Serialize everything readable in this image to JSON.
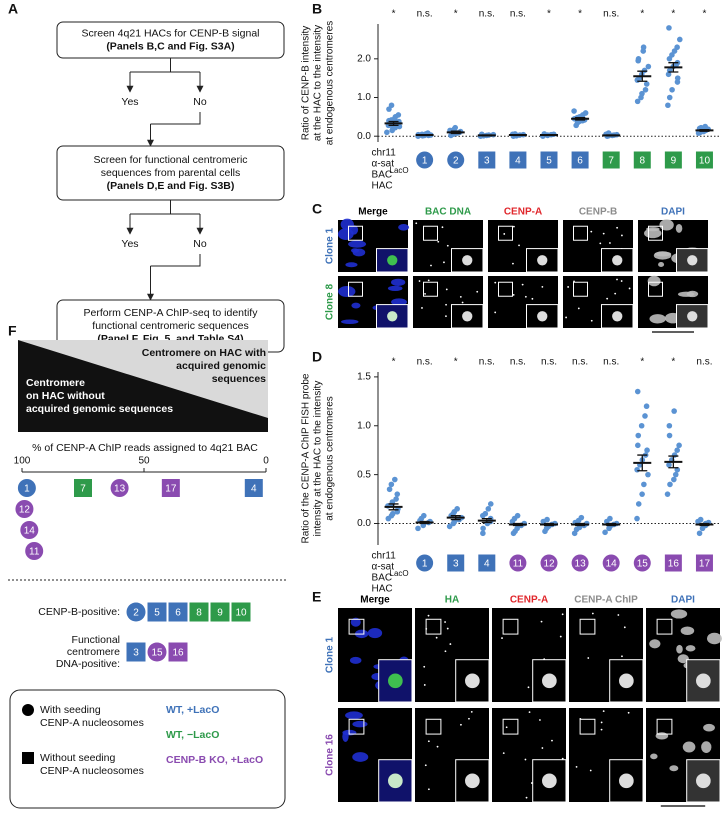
{
  "panel_a": {
    "label": "A",
    "boxes": [
      {
        "lines": [
          "Screen 4q21 HACs for CENP-B signal"
        ],
        "ref": "(Panels B,C and Fig. S3A)"
      },
      {
        "lines": [
          "Screen for functional centromeric",
          "sequences from parental cells"
        ],
        "ref": "(Panels D,E and Fig. S3B)"
      },
      {
        "lines": [
          "Perform CENP-A ChIP-seq to identify",
          "functional centromeric sequences"
        ],
        "ref": "(Panel F, Fig. 5, and Table S4)"
      }
    ],
    "branches": [
      {
        "yes": "Yes",
        "no": "No"
      },
      {
        "yes": "Yes",
        "no": "No"
      }
    ]
  },
  "panel_c": {
    "label": "C",
    "columns": [
      {
        "text": "Merge",
        "color": "#000000"
      },
      {
        "text": "BAC DNA",
        "color": "#2e9a4a"
      },
      {
        "text": "CENP-A",
        "color": "#e0262b"
      },
      {
        "text": "CENP-B",
        "color": "#8c8c8c"
      },
      {
        "text": "DAPI",
        "color": "#3f72b8"
      }
    ],
    "rows": [
      {
        "text": "Clone 1",
        "color": "#3f72b8"
      },
      {
        "text": "Clone 8",
        "color": "#2e9a4a"
      }
    ]
  },
  "panel_e": {
    "label": "E",
    "columns": [
      {
        "text": "Merge",
        "color": "#000000"
      },
      {
        "text": "HA",
        "color": "#2e9a4a"
      },
      {
        "text": "CENP-A",
        "color": "#e0262b"
      },
      {
        "text": "CENP-A ChIP",
        "color": "#8c8c8c"
      },
      {
        "text": "DAPI",
        "color": "#3f72b8"
      }
    ],
    "rows": [
      {
        "text": "Clone 1",
        "color": "#3f72b8"
      },
      {
        "text": "Clone 16",
        "color": "#8a4bb0"
      }
    ]
  },
  "panel_f": {
    "label": "F",
    "top_text_lines": [
      "Centromere on HAC with",
      "acquired genomic",
      "sequences"
    ],
    "bottom_text_lines": [
      "Centromere",
      "on HAC without",
      "acquired genomic sequences"
    ],
    "sets": [
      {
        "label_lines": [
          "CENP-B-positive:"
        ],
        "clones": [
          {
            "label": "2",
            "shape": "circle",
            "color": "#3f72b8"
          },
          {
            "label": "5",
            "shape": "square",
            "color": "#3f72b8"
          },
          {
            "label": "6",
            "shape": "square",
            "color": "#3f72b8"
          },
          {
            "label": "8",
            "shape": "square",
            "color": "#2e9a4a"
          },
          {
            "label": "9",
            "shape": "square",
            "color": "#2e9a4a"
          },
          {
            "label": "10",
            "shape": "square",
            "color": "#2e9a4a"
          }
        ]
      },
      {
        "label_lines": [
          "Functional",
          "centromere",
          "DNA-positive:"
        ],
        "clones": [
          {
            "label": "3",
            "shape": "square",
            "color": "#3f72b8"
          },
          {
            "label": "15",
            "shape": "circle",
            "color": "#8a4bb0"
          },
          {
            "label": "16",
            "shape": "square",
            "color": "#8a4bb0"
          }
        ]
      }
    ],
    "legend": {
      "shapes": [
        {
          "shape": "circle",
          "lines": [
            "With seeding",
            "CENP-A nucleosomes"
          ]
        },
        {
          "shape": "square",
          "lines": [
            "Without seeding",
            "CENP-A nucleosomes"
          ]
        }
      ],
      "colors": [
        {
          "text": "WT, +LacO",
          "color": "#3f72b8"
        },
        {
          "text": "WT, −LacO",
          "color": "#2e9a4a"
        },
        {
          "text": "CENP-B KO, +LacO",
          "color": "#8a4bb0"
        }
      ]
    }
  },
  "chart_data": [
    {
      "type": "dotplot",
      "label": "B",
      "dot_color": "#5b93d3",
      "ylabel_lines": [
        "Ratio of CENP-B intensity",
        "at the HAC to the intensity",
        "at endogenous centromeres"
      ],
      "ylim": [
        -0.15,
        2.9
      ],
      "yticks": [
        {
          "value": 0,
          "label": "0.0"
        },
        {
          "value": 1,
          "label": "1.0"
        },
        {
          "value": 2,
          "label": "2.0"
        }
      ],
      "groups": [
        {
          "label_lines": [
            "chr11",
            "α-sat",
            "BAC",
            "HAC"
          ],
          "label_sup": "LacO",
          "sig": "*",
          "values": [
            0.1,
            0.15,
            0.2,
            0.22,
            0.25,
            0.28,
            0.3,
            0.32,
            0.35,
            0.38,
            0.4,
            0.42,
            0.45,
            0.5,
            0.55,
            0.7,
            0.8
          ],
          "mean": 0.33,
          "sem": 0.05
        },
        {
          "label": "1",
          "shape": "circle",
          "color": "#3f72b8",
          "sig": "n.s.",
          "values": [
            0,
            0.01,
            0.02,
            0.02,
            0.03,
            0.04,
            0.05,
            0.06,
            0.08
          ],
          "mean": 0.03,
          "sem": 0.01
        },
        {
          "label": "2",
          "shape": "circle",
          "color": "#3f72b8",
          "sig": "*",
          "values": [
            0.02,
            0.05,
            0.08,
            0.1,
            0.12,
            0.15,
            0.18,
            0.22
          ],
          "mean": 0.1,
          "sem": 0.03
        },
        {
          "label": "3",
          "shape": "square",
          "color": "#3f72b8",
          "sig": "n.s.",
          "values": [
            0,
            0.01,
            0.02,
            0.03,
            0.04,
            0.05
          ],
          "mean": 0.02,
          "sem": 0.01
        },
        {
          "label": "4",
          "shape": "square",
          "color": "#3f72b8",
          "sig": "n.s.",
          "values": [
            0,
            0.01,
            0.02,
            0.03,
            0.04,
            0.05,
            0.06
          ],
          "mean": 0.03,
          "sem": 0.01
        },
        {
          "label": "5",
          "shape": "square",
          "color": "#3f72b8",
          "sig": "*",
          "values": [
            0,
            0.02,
            0.03,
            0.04,
            0.05,
            0.06
          ],
          "mean": 0.03,
          "sem": 0.01
        },
        {
          "label": "6",
          "shape": "square",
          "color": "#3f72b8",
          "sig": "*",
          "values": [
            0.28,
            0.35,
            0.38,
            0.4,
            0.42,
            0.45,
            0.48,
            0.5,
            0.55,
            0.6,
            0.65
          ],
          "mean": 0.45,
          "sem": 0.03
        },
        {
          "label": "7",
          "shape": "square",
          "color": "#2e9a4a",
          "sig": "n.s.",
          "values": [
            0,
            0.01,
            0.02,
            0.03,
            0.04,
            0.05,
            0.08
          ],
          "mean": 0.02,
          "sem": 0.01
        },
        {
          "label": "8",
          "shape": "square",
          "color": "#2e9a4a",
          "sig": "*",
          "values": [
            0.9,
            1.0,
            1.1,
            1.2,
            1.35,
            1.45,
            1.5,
            1.6,
            1.7,
            1.8,
            1.95,
            2.0,
            2.2,
            2.3
          ],
          "mean": 1.55,
          "sem": 0.13
        },
        {
          "label": "9",
          "shape": "square",
          "color": "#2e9a4a",
          "sig": "*",
          "values": [
            0.8,
            1.0,
            1.2,
            1.4,
            1.5,
            1.6,
            1.7,
            1.8,
            1.85,
            1.9,
            2.0,
            2.1,
            2.2,
            2.3,
            2.5,
            2.8
          ],
          "mean": 1.78,
          "sem": 0.12
        },
        {
          "label": "10",
          "shape": "square",
          "color": "#2e9a4a",
          "sig": "*",
          "values": [
            0.08,
            0.1,
            0.12,
            0.15,
            0.18,
            0.2,
            0.22,
            0.25
          ],
          "mean": 0.15,
          "sem": 0.02
        }
      ]
    },
    {
      "type": "dotplot",
      "label": "D",
      "dot_color": "#5b93d3",
      "ylabel_lines": [
        "Ratio of the CENP-A ChIP FISH probe",
        "intensity at the HAC to the intensity",
        "at endogenous centromeres"
      ],
      "ylim": [
        -0.22,
        1.55
      ],
      "yticks": [
        {
          "value": 0,
          "label": "0.0"
        },
        {
          "value": 0.5,
          "label": "0.5"
        },
        {
          "value": 1,
          "label": "1.0"
        },
        1.5
      ],
      "groups": [
        {
          "label_lines": [
            "chr11",
            "α-sat",
            "BAC",
            "HAC"
          ],
          "label_sup": "LacO",
          "sig": "*",
          "values": [
            0.05,
            0.08,
            0.1,
            0.12,
            0.15,
            0.18,
            0.2,
            0.22,
            0.25,
            0.3,
            0.35,
            0.4,
            0.45
          ],
          "mean": 0.17,
          "sem": 0.03
        },
        {
          "label": "1",
          "shape": "circle",
          "color": "#3f72b8",
          "sig": "n.s.",
          "values": [
            -0.05,
            -0.02,
            0,
            0.01,
            0.02,
            0.03,
            0.05,
            0.08
          ],
          "mean": 0.01,
          "sem": 0.01
        },
        {
          "label": "3",
          "shape": "square",
          "color": "#3f72b8",
          "sig": "*",
          "values": [
            -0.03,
            0,
            0.02,
            0.04,
            0.06,
            0.08,
            0.1,
            0.12,
            0.15
          ],
          "mean": 0.06,
          "sem": 0.02
        },
        {
          "label": "4",
          "shape": "square",
          "color": "#3f72b8",
          "sig": "n.s.",
          "values": [
            -0.1,
            -0.05,
            0,
            0.02,
            0.05,
            0.08,
            0.1,
            0.15,
            0.2
          ],
          "mean": 0.03,
          "sem": 0.02
        },
        {
          "label": "11",
          "shape": "circle",
          "color": "#8a4bb0",
          "sig": "n.s.",
          "values": [
            -0.1,
            -0.08,
            -0.05,
            -0.02,
            0,
            0.02,
            0.05,
            0.08
          ],
          "mean": -0.01,
          "sem": 0.01
        },
        {
          "label": "12",
          "shape": "circle",
          "color": "#8a4bb0",
          "sig": "n.s.",
          "values": [
            -0.08,
            -0.05,
            -0.03,
            -0.01,
            0,
            0.02,
            0.04
          ],
          "mean": -0.01,
          "sem": 0.01
        },
        {
          "label": "13",
          "shape": "circle",
          "color": "#8a4bb0",
          "sig": "n.s.",
          "values": [
            -0.1,
            -0.06,
            -0.04,
            -0.02,
            0,
            0.01,
            0.03,
            0.06
          ],
          "mean": -0.01,
          "sem": 0.01
        },
        {
          "label": "14",
          "shape": "circle",
          "color": "#8a4bb0",
          "sig": "n.s.",
          "values": [
            -0.09,
            -0.05,
            -0.03,
            -0.01,
            0,
            0.02,
            0.05
          ],
          "mean": -0.01,
          "sem": 0.01
        },
        {
          "label": "15",
          "shape": "circle",
          "color": "#8a4bb0",
          "sig": "*",
          "values": [
            0.05,
            0.2,
            0.3,
            0.4,
            0.5,
            0.55,
            0.6,
            0.65,
            0.7,
            0.75,
            0.8,
            0.9,
            1.0,
            1.1,
            1.2,
            1.35
          ],
          "mean": 0.62,
          "sem": 0.08
        },
        {
          "label": "16",
          "shape": "square",
          "color": "#8a4bb0",
          "sig": "*",
          "values": [
            0.3,
            0.4,
            0.45,
            0.5,
            0.55,
            0.6,
            0.65,
            0.7,
            0.75,
            0.8,
            0.9,
            1.0,
            1.15
          ],
          "mean": 0.63,
          "sem": 0.06
        },
        {
          "label": "17",
          "shape": "square",
          "color": "#8a4bb0",
          "sig": "n.s.",
          "values": [
            -0.1,
            -0.05,
            -0.02,
            0,
            0.01,
            0.02,
            0.04
          ],
          "mean": -0.01,
          "sem": 0.01
        }
      ]
    },
    {
      "type": "strip",
      "xlabel": "% of CENP-A ChIP reads assigned to 4q21 BAC",
      "xlim": [
        100,
        0
      ],
      "xticks": [
        100,
        50,
        0
      ],
      "points": [
        {
          "label": "1",
          "value": 98,
          "shape": "circle",
          "color": "#3f72b8"
        },
        {
          "label": "12",
          "value": 99,
          "shape": "circle",
          "color": "#8a4bb0"
        },
        {
          "label": "14",
          "value": 97,
          "shape": "circle",
          "color": "#8a4bb0"
        },
        {
          "label": "11",
          "value": 95,
          "shape": "circle",
          "color": "#8a4bb0"
        },
        {
          "label": "7",
          "value": 75,
          "shape": "square",
          "color": "#2e9a4a"
        },
        {
          "label": "13",
          "value": 60,
          "shape": "circle",
          "color": "#8a4bb0"
        },
        {
          "label": "17",
          "value": 39,
          "shape": "square",
          "color": "#8a4bb0"
        },
        {
          "label": "4",
          "value": 5,
          "shape": "square",
          "color": "#3f72b8"
        }
      ]
    }
  ]
}
